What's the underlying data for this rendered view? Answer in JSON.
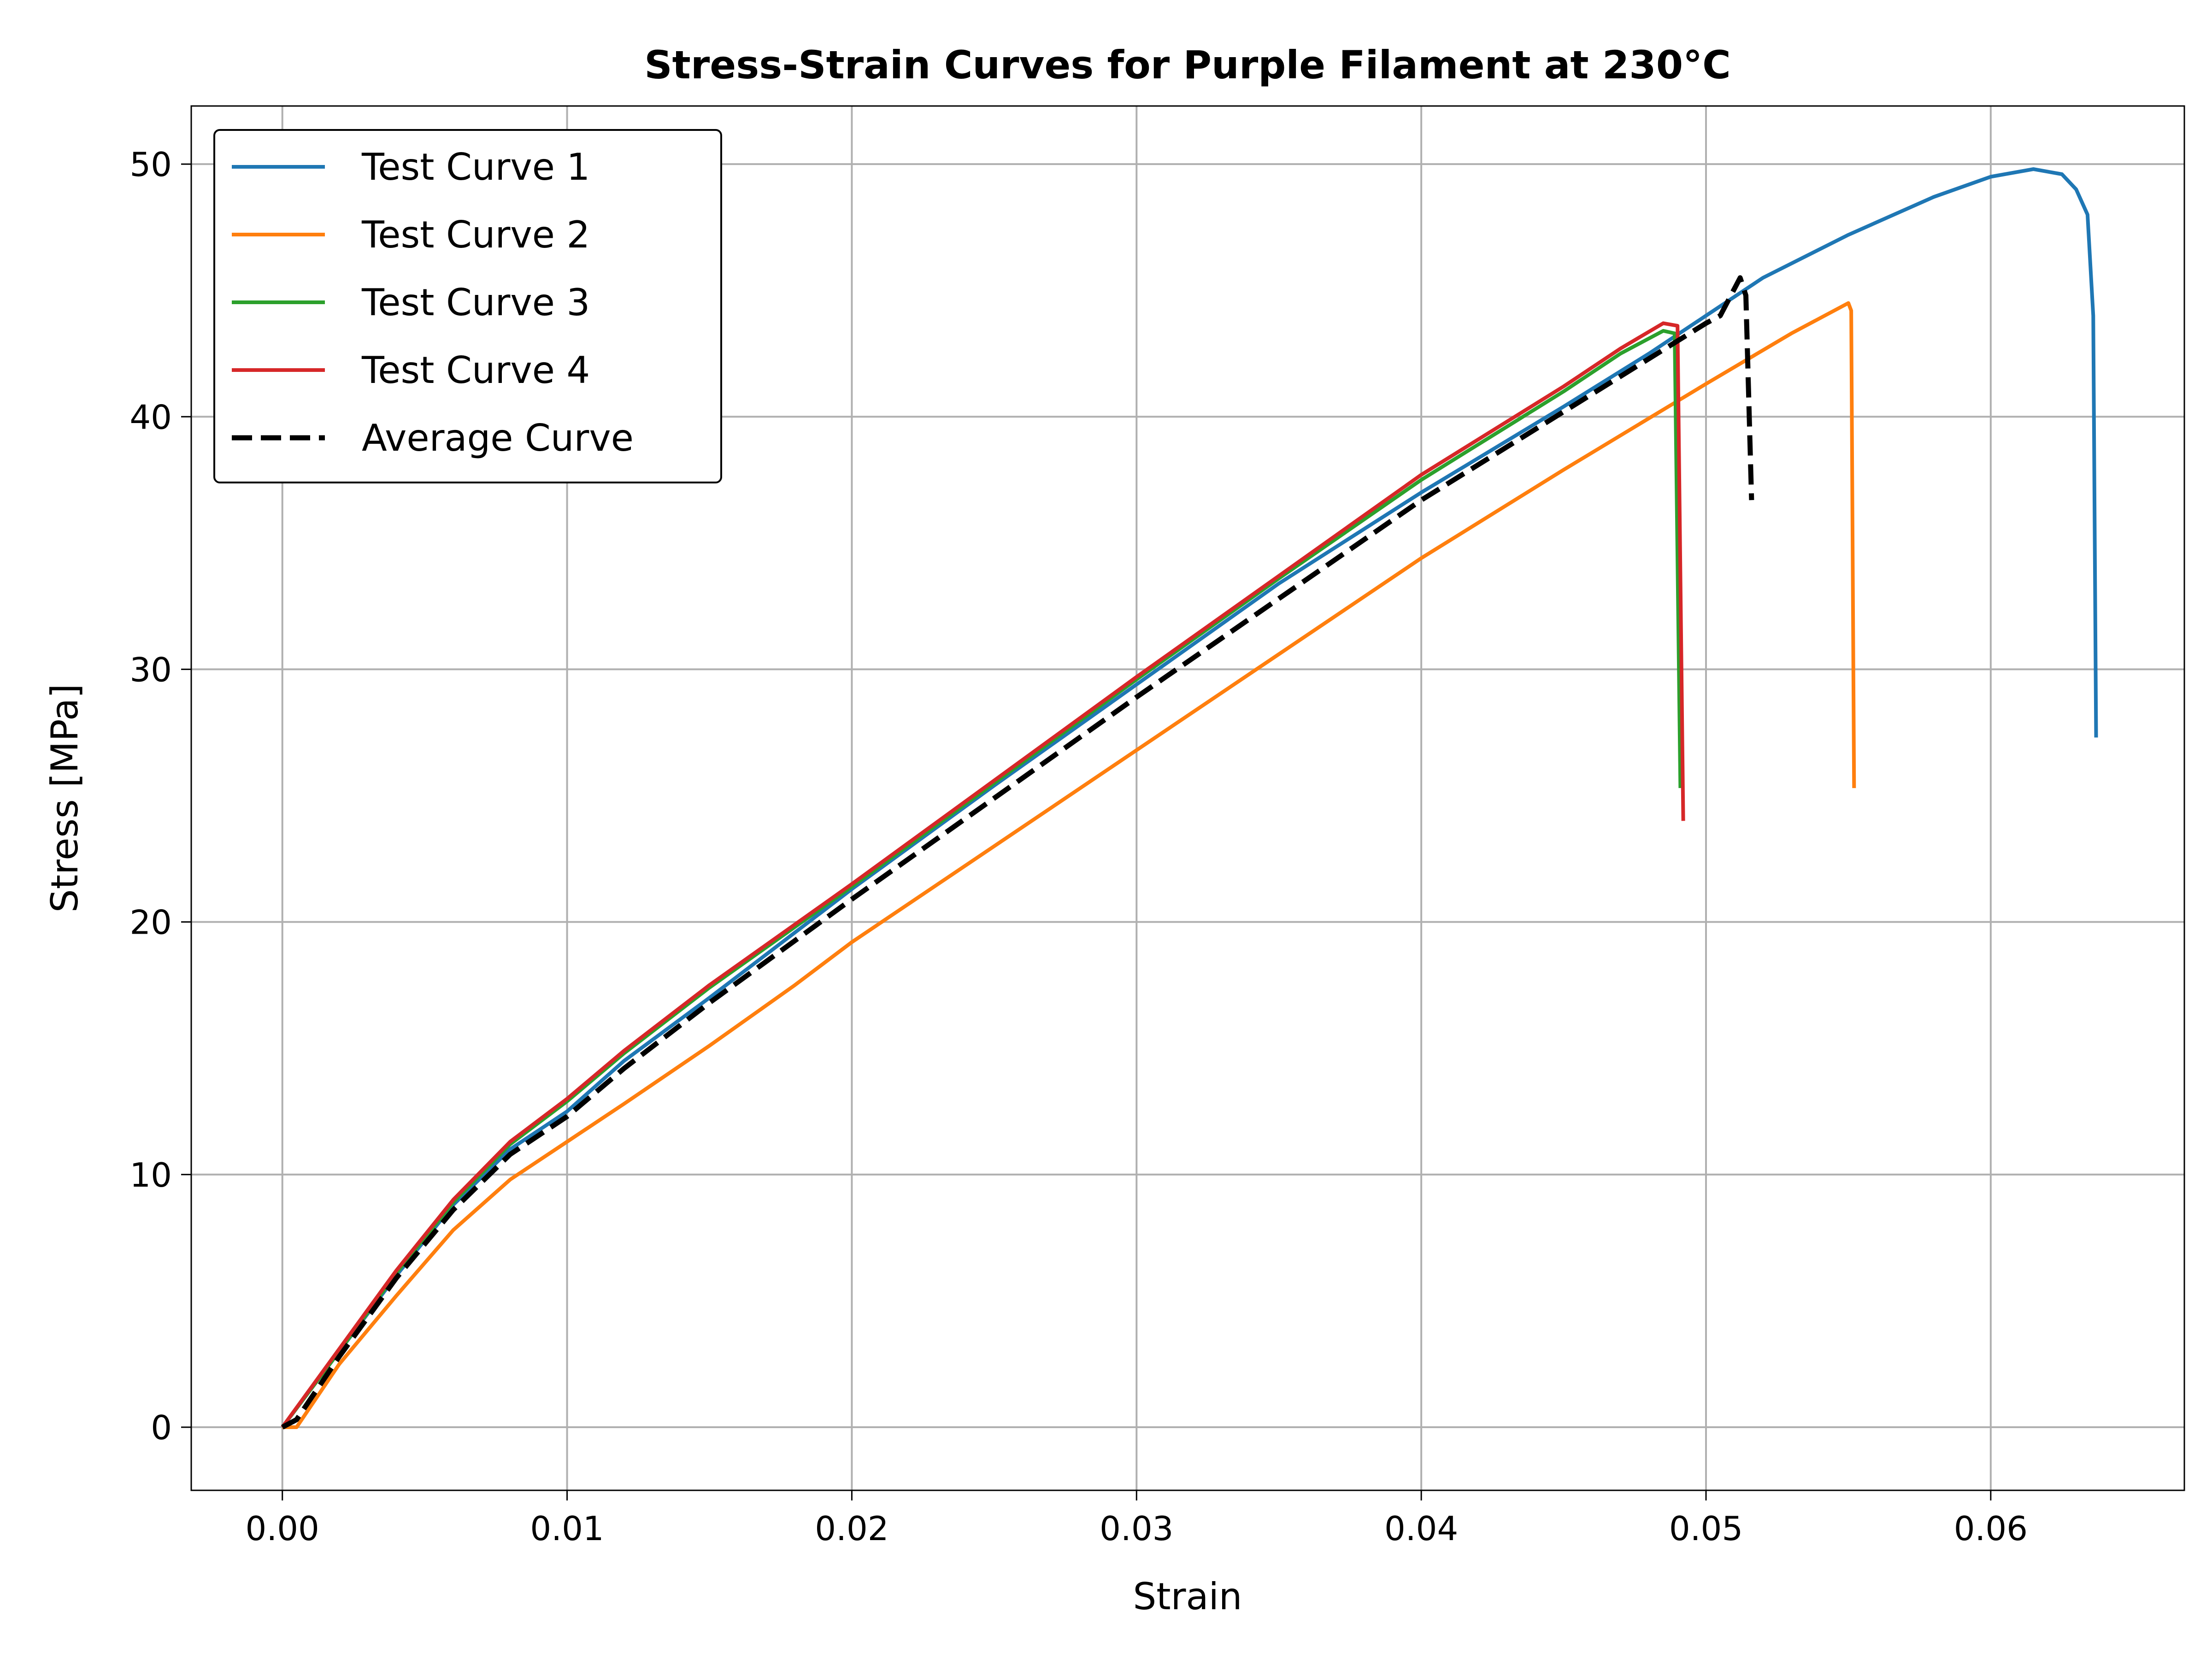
{
  "chart_data": {
    "type": "line",
    "title": "Stress-Strain Curves for Purple Filament at 230°C",
    "xlabel": "Strain",
    "ylabel": "Stress [MPa]",
    "xlim": [
      -0.0032,
      0.0668
    ],
    "ylim": [
      -2.5,
      52.3
    ],
    "xticks": [
      0.0,
      0.01,
      0.02,
      0.03,
      0.04,
      0.05,
      0.06
    ],
    "xtick_labels": [
      "0.00",
      "0.01",
      "0.02",
      "0.03",
      "0.04",
      "0.05",
      "0.06"
    ],
    "yticks": [
      0,
      10,
      20,
      30,
      40,
      50
    ],
    "ytick_labels": [
      "0",
      "10",
      "20",
      "30",
      "40",
      "50"
    ],
    "grid": true,
    "legend_position": "top-left",
    "series": [
      {
        "name": "Test Curve 1",
        "color": "#1f77b4",
        "dash": "solid",
        "points": [
          [
            0.0,
            0.0
          ],
          [
            0.002,
            3.0
          ],
          [
            0.004,
            6.0
          ],
          [
            0.006,
            8.8
          ],
          [
            0.008,
            11.0
          ],
          [
            0.01,
            12.5
          ],
          [
            0.012,
            14.5
          ],
          [
            0.015,
            17.0
          ],
          [
            0.02,
            21.3
          ],
          [
            0.025,
            25.4
          ],
          [
            0.03,
            29.4
          ],
          [
            0.035,
            33.4
          ],
          [
            0.04,
            37.0
          ],
          [
            0.045,
            40.4
          ],
          [
            0.048,
            42.5
          ],
          [
            0.05,
            44.0
          ],
          [
            0.052,
            45.5
          ],
          [
            0.055,
            47.2
          ],
          [
            0.058,
            48.7
          ],
          [
            0.06,
            49.5
          ],
          [
            0.0615,
            49.8
          ],
          [
            0.0625,
            49.6
          ],
          [
            0.063,
            49.0
          ],
          [
            0.0634,
            48.0
          ],
          [
            0.0636,
            44.0
          ],
          [
            0.0637,
            27.3
          ]
        ]
      },
      {
        "name": "Test Curve 2",
        "color": "#ff7f0e",
        "dash": "solid",
        "points": [
          [
            0.0,
            0.0
          ],
          [
            0.0005,
            0.0
          ],
          [
            0.002,
            2.5
          ],
          [
            0.004,
            5.2
          ],
          [
            0.006,
            7.8
          ],
          [
            0.008,
            9.8
          ],
          [
            0.01,
            11.3
          ],
          [
            0.012,
            12.8
          ],
          [
            0.015,
            15.1
          ],
          [
            0.018,
            17.5
          ],
          [
            0.02,
            19.2
          ],
          [
            0.025,
            23.0
          ],
          [
            0.03,
            26.8
          ],
          [
            0.035,
            30.6
          ],
          [
            0.04,
            34.4
          ],
          [
            0.045,
            37.9
          ],
          [
            0.05,
            41.3
          ],
          [
            0.053,
            43.3
          ],
          [
            0.055,
            44.5
          ],
          [
            0.0551,
            44.2
          ],
          [
            0.0552,
            25.3
          ]
        ]
      },
      {
        "name": "Test Curve 3",
        "color": "#2ca02c",
        "dash": "solid",
        "points": [
          [
            0.0,
            0.0
          ],
          [
            0.002,
            3.0
          ],
          [
            0.004,
            6.1
          ],
          [
            0.006,
            8.9
          ],
          [
            0.008,
            11.2
          ],
          [
            0.01,
            12.9
          ],
          [
            0.012,
            14.8
          ],
          [
            0.015,
            17.4
          ],
          [
            0.02,
            21.4
          ],
          [
            0.025,
            25.5
          ],
          [
            0.03,
            29.6
          ],
          [
            0.035,
            33.6
          ],
          [
            0.04,
            37.5
          ],
          [
            0.045,
            41.0
          ],
          [
            0.047,
            42.5
          ],
          [
            0.0485,
            43.4
          ],
          [
            0.0489,
            43.3
          ],
          [
            0.0491,
            25.3
          ]
        ]
      },
      {
        "name": "Test Curve 4",
        "color": "#d62728",
        "dash": "solid",
        "points": [
          [
            0.0,
            0.0
          ],
          [
            0.002,
            3.1
          ],
          [
            0.004,
            6.2
          ],
          [
            0.006,
            9.0
          ],
          [
            0.008,
            11.3
          ],
          [
            0.01,
            13.0
          ],
          [
            0.012,
            14.9
          ],
          [
            0.015,
            17.5
          ],
          [
            0.02,
            21.5
          ],
          [
            0.025,
            25.6
          ],
          [
            0.03,
            29.7
          ],
          [
            0.035,
            33.7
          ],
          [
            0.04,
            37.7
          ],
          [
            0.045,
            41.2
          ],
          [
            0.047,
            42.7
          ],
          [
            0.0485,
            43.7
          ],
          [
            0.049,
            43.6
          ],
          [
            0.0492,
            24.0
          ]
        ]
      },
      {
        "name": "Average Curve",
        "color": "#000000",
        "dash": "dashed",
        "points": [
          [
            0.0,
            0.0
          ],
          [
            0.0005,
            0.3
          ],
          [
            0.002,
            2.8
          ],
          [
            0.004,
            5.9
          ],
          [
            0.006,
            8.6
          ],
          [
            0.008,
            10.8
          ],
          [
            0.01,
            12.3
          ],
          [
            0.012,
            14.2
          ],
          [
            0.015,
            16.8
          ],
          [
            0.02,
            20.9
          ],
          [
            0.025,
            24.9
          ],
          [
            0.03,
            28.9
          ],
          [
            0.035,
            32.8
          ],
          [
            0.04,
            36.7
          ],
          [
            0.045,
            40.2
          ],
          [
            0.048,
            42.3
          ],
          [
            0.05,
            43.7
          ],
          [
            0.0505,
            44.0
          ],
          [
            0.0512,
            45.5
          ],
          [
            0.0514,
            44.8
          ],
          [
            0.0516,
            36.7
          ]
        ]
      }
    ]
  }
}
